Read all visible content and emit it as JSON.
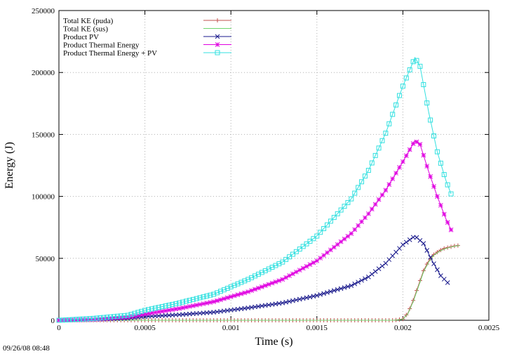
{
  "timestamp": "09/26/08 08:48",
  "chart_data": {
    "type": "line",
    "xlabel": "Time (s)",
    "ylabel": "Energy (J)",
    "xlim": [
      0,
      0.0025
    ],
    "ylim": [
      0,
      250000
    ],
    "xticks": [
      "0",
      "0.0005",
      "0.001",
      "0.0015",
      "0.002",
      "0.0025"
    ],
    "yticks": [
      "0",
      "50000",
      "100000",
      "150000",
      "200000",
      "250000"
    ],
    "grid": true,
    "legend_position": "top-left",
    "series": [
      {
        "name": "Total KE (puda)",
        "color": "#c0504d",
        "marker": "plus",
        "x": [
          0,
          0.0002,
          0.0004,
          0.0006,
          0.0008,
          0.001,
          0.0012,
          0.0014,
          0.0016,
          0.0018,
          0.00195,
          0.002,
          0.00203,
          0.00206,
          0.00209,
          0.00212,
          0.00215,
          0.00218,
          0.00221,
          0.00224,
          0.00227,
          0.0023,
          0.00233
        ],
        "y": [
          0,
          0,
          0,
          0,
          0,
          0,
          0,
          0,
          0,
          0,
          0,
          1000,
          6000,
          16000,
          28000,
          40000,
          48000,
          53000,
          56000,
          58000,
          59000,
          60000,
          60500
        ]
      },
      {
        "name": "Total KE (sus)",
        "color": "#6fd66f",
        "marker": "none",
        "x": [
          0,
          0.0006,
          0.0012,
          0.0018,
          0.00195,
          0.002,
          0.00203,
          0.00206,
          0.00209,
          0.00212,
          0.00215,
          0.00218,
          0.00221,
          0.00224,
          0.00227,
          0.0023,
          0.00233
        ],
        "y": [
          0,
          0,
          0,
          0,
          0,
          800,
          5500,
          15000,
          27000,
          39000,
          47000,
          52500,
          55500,
          57500,
          58800,
          59800,
          60300
        ]
      },
      {
        "name": "Product PV",
        "color": "#1a1a8c",
        "marker": "x",
        "x": [
          0,
          0.0002,
          0.0004,
          0.0005,
          0.0007,
          0.0009,
          0.0011,
          0.0013,
          0.0015,
          0.0017,
          0.0018,
          0.0019,
          0.002,
          0.00207,
          0.00212,
          0.00217,
          0.00222,
          0.00227
        ],
        "y": [
          0,
          500,
          1500,
          3000,
          4500,
          6500,
          10000,
          14000,
          20000,
          28000,
          35000,
          46000,
          61000,
          68000,
          62000,
          48000,
          36000,
          29000
        ]
      },
      {
        "name": "Product Thermal Energy",
        "color": "#e000e0",
        "marker": "star",
        "x": [
          0,
          0.0002,
          0.0004,
          0.0005,
          0.0007,
          0.0009,
          0.0011,
          0.0013,
          0.0015,
          0.0017,
          0.0018,
          0.0019,
          0.002,
          0.00207,
          0.0021,
          0.00215,
          0.0022,
          0.00225,
          0.00228
        ],
        "y": [
          0,
          800,
          2500,
          5000,
          9500,
          15000,
          23000,
          33000,
          48000,
          70000,
          86000,
          105000,
          128000,
          145000,
          142000,
          120000,
          100000,
          82000,
          73000
        ]
      },
      {
        "name": "Product Thermal Energy + PV",
        "color": "#33e0e0",
        "marker": "square",
        "x": [
          0,
          0.0002,
          0.0004,
          0.0005,
          0.0007,
          0.0009,
          0.0011,
          0.0013,
          0.0015,
          0.0017,
          0.0018,
          0.0019,
          0.002,
          0.00207,
          0.0021,
          0.00215,
          0.0022,
          0.00225,
          0.00228
        ],
        "y": [
          0,
          1500,
          4000,
          8000,
          14000,
          21000,
          33000,
          47000,
          68000,
          98000,
          121000,
          151000,
          189000,
          212000,
          205000,
          168000,
          136000,
          113000,
          102000
        ]
      }
    ]
  }
}
